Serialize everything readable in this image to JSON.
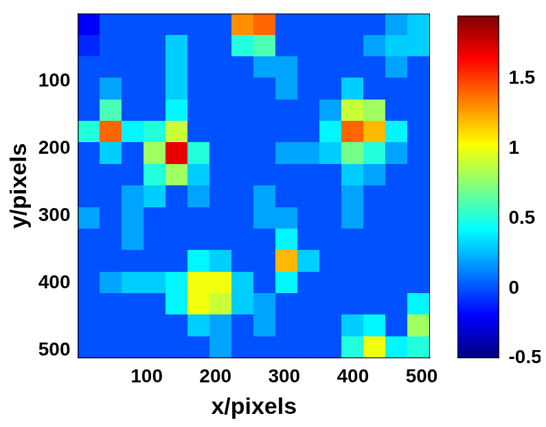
{
  "chart_data": {
    "type": "heatmap",
    "xlabel": "x/pixels",
    "ylabel": "y/pixels",
    "x": [
      16,
      48,
      80,
      112,
      144,
      176,
      208,
      240,
      272,
      304,
      336,
      368,
      400,
      432,
      464,
      496
    ],
    "y": [
      16,
      48,
      80,
      112,
      144,
      176,
      208,
      240,
      272,
      304,
      336,
      368,
      400,
      432,
      464,
      496
    ],
    "xlim": [
      0,
      512
    ],
    "ylim": [
      512,
      0
    ],
    "xticks": [
      100,
      200,
      300,
      400,
      500
    ],
    "yticks": [
      100,
      200,
      300,
      400,
      500
    ],
    "cells": [
      [
        -0.2,
        0,
        0,
        0,
        0,
        0,
        0,
        1.3,
        1.4,
        0,
        0,
        0,
        0,
        0,
        0.2,
        0.3
      ],
      [
        -0.1,
        0,
        0,
        0,
        0.3,
        0,
        0,
        0.5,
        0.6,
        0,
        0,
        0,
        0,
        0.2,
        0.3,
        0.3
      ],
      [
        0,
        0,
        0,
        0,
        0.3,
        0,
        0,
        0,
        0.2,
        0.2,
        0,
        0,
        0,
        0,
        0.2,
        0
      ],
      [
        0,
        0.2,
        0,
        0,
        0.3,
        0,
        0,
        0,
        0,
        0.2,
        0,
        0,
        0.3,
        0,
        0,
        0
      ],
      [
        0,
        0.6,
        0,
        0,
        0.4,
        0,
        0,
        0,
        0,
        0,
        0,
        0.2,
        0.9,
        0.8,
        0,
        0
      ],
      [
        0.5,
        1.4,
        0.4,
        0.5,
        0.9,
        0,
        0,
        0,
        0,
        0,
        0,
        0.4,
        1.4,
        1.2,
        0.4,
        0
      ],
      [
        0,
        0.3,
        0,
        0.8,
        1.7,
        0.5,
        0,
        0,
        0,
        0.2,
        0.2,
        0.3,
        0.7,
        0.5,
        0.2,
        0
      ],
      [
        0,
        0,
        0,
        0.5,
        0.8,
        0.3,
        0,
        0,
        0,
        0,
        0,
        0,
        0.3,
        0.2,
        0,
        0
      ],
      [
        0,
        0,
        0.2,
        0.3,
        0,
        0.2,
        0,
        0,
        0.2,
        0,
        0,
        0,
        0.2,
        0,
        0,
        0
      ],
      [
        0.2,
        0,
        0.2,
        0,
        0,
        0,
        0,
        0,
        0.2,
        0.2,
        0,
        0,
        0.2,
        0,
        0,
        0
      ],
      [
        0,
        0,
        0.2,
        0,
        0,
        0,
        0,
        0,
        0,
        0.4,
        0,
        0,
        0,
        0,
        0,
        0
      ],
      [
        0,
        0,
        0,
        0,
        0,
        0.4,
        0.3,
        0,
        0,
        1.2,
        0.3,
        0,
        0,
        0,
        0,
        0
      ],
      [
        0,
        0.2,
        0.3,
        0.3,
        0.4,
        1.0,
        1.0,
        0.3,
        0,
        0.4,
        0,
        0,
        0,
        0,
        0,
        0
      ],
      [
        0,
        0,
        0,
        0,
        0.4,
        1.0,
        0.9,
        0.3,
        0.2,
        0,
        0,
        0,
        0,
        0,
        0,
        0.4
      ],
      [
        0,
        0,
        0,
        0,
        0,
        0.3,
        0.2,
        0,
        0.2,
        0,
        0,
        0,
        0.3,
        0.4,
        0,
        0.8
      ],
      [
        0,
        0,
        0,
        0,
        0,
        0,
        0.2,
        0,
        0,
        0,
        0,
        0,
        0.5,
        1.0,
        0.4,
        0.5
      ]
    ],
    "colorbar": {
      "range": [
        -0.5,
        1.95
      ],
      "ticks": [
        -0.5,
        0,
        0.5,
        1,
        1.5
      ]
    }
  }
}
